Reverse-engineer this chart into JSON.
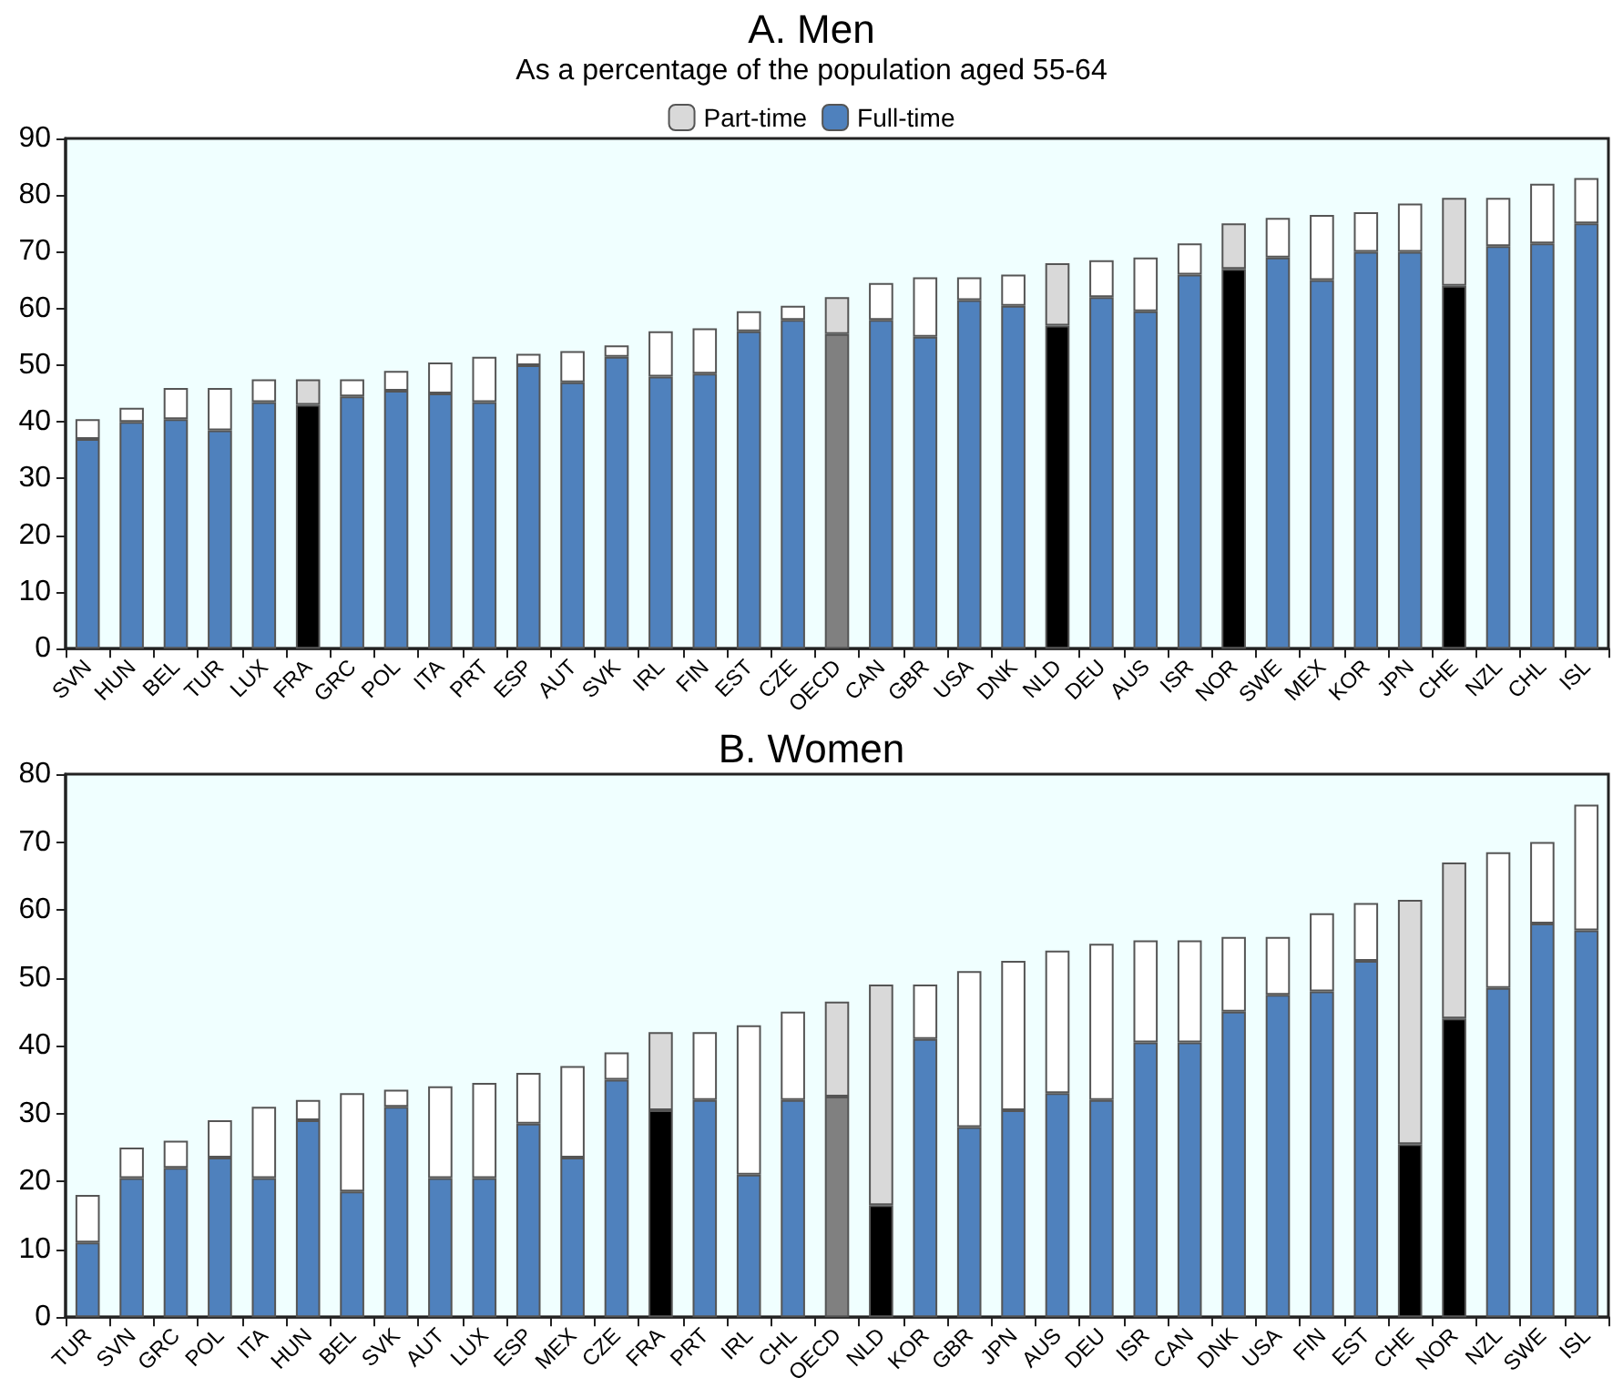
{
  "chart_data": [
    {
      "type": "bar",
      "title": "A. Men",
      "subtitle": "As a percentage of the population aged 55-64",
      "stacked": true,
      "legend": "top",
      "grid": false,
      "categories": [
        "SVN",
        "HUN",
        "BEL",
        "TUR",
        "LUX",
        "FRA",
        "GRC",
        "POL",
        "ITA",
        "PRT",
        "ESP",
        "AUT",
        "SVK",
        "IRL",
        "FIN",
        "EST",
        "CZE",
        "OECD",
        "CAN",
        "GBR",
        "USA",
        "DNK",
        "NLD",
        "DEU",
        "AUS",
        "ISR",
        "NOR",
        "SWE",
        "MEX",
        "KOR",
        "JPN",
        "CHE",
        "NZL",
        "CHL",
        "ISL"
      ],
      "ylim": [
        0,
        90
      ],
      "yticks": [
        0,
        10,
        20,
        30,
        40,
        50,
        60,
        70,
        80,
        90
      ],
      "series": [
        {
          "name": "Full-time",
          "color": "#4f81bd",
          "values": [
            37,
            40,
            40.5,
            38.5,
            43.5,
            43,
            44.5,
            45.5,
            45,
            43.5,
            50,
            47,
            51.5,
            48,
            48.5,
            56,
            58,
            55.5,
            58,
            55,
            61.5,
            60.5,
            57,
            62,
            59.5,
            66,
            67,
            69,
            65,
            70,
            70,
            64,
            71,
            71.5,
            75
          ],
          "colors": [
            "#4f81bd",
            "#4f81bd",
            "#4f81bd",
            "#4f81bd",
            "#4f81bd",
            "#000000",
            "#4f81bd",
            "#4f81bd",
            "#4f81bd",
            "#4f81bd",
            "#4f81bd",
            "#4f81bd",
            "#4f81bd",
            "#4f81bd",
            "#4f81bd",
            "#4f81bd",
            "#4f81bd",
            "#808080",
            "#4f81bd",
            "#4f81bd",
            "#4f81bd",
            "#4f81bd",
            "#000000",
            "#4f81bd",
            "#4f81bd",
            "#4f81bd",
            "#000000",
            "#4f81bd",
            "#4f81bd",
            "#4f81bd",
            "#4f81bd",
            "#000000",
            "#4f81bd",
            "#4f81bd",
            "#4f81bd"
          ]
        },
        {
          "name": "Part-time",
          "color": "#d9d9d9",
          "values": [
            3.5,
            2.5,
            5.5,
            7.5,
            4,
            4.5,
            3,
            3.5,
            5.5,
            8,
            2,
            5.5,
            2,
            8,
            8,
            3.5,
            2.5,
            6.5,
            6.5,
            10.5,
            4,
            5.5,
            11,
            6.5,
            9.5,
            5.5,
            8,
            7,
            11.5,
            7,
            8.5,
            15.5,
            8.5,
            10.5,
            8
          ],
          "colors": [
            "#ffffff",
            "#ffffff",
            "#ffffff",
            "#ffffff",
            "#ffffff",
            "#d9d9d9",
            "#ffffff",
            "#ffffff",
            "#ffffff",
            "#ffffff",
            "#ffffff",
            "#ffffff",
            "#ffffff",
            "#ffffff",
            "#ffffff",
            "#ffffff",
            "#ffffff",
            "#d9d9d9",
            "#ffffff",
            "#ffffff",
            "#ffffff",
            "#ffffff",
            "#d9d9d9",
            "#ffffff",
            "#ffffff",
            "#ffffff",
            "#d9d9d9",
            "#ffffff",
            "#ffffff",
            "#ffffff",
            "#ffffff",
            "#d9d9d9",
            "#ffffff",
            "#ffffff",
            "#ffffff"
          ]
        }
      ]
    },
    {
      "type": "bar",
      "title": "B. Women",
      "stacked": true,
      "grid": false,
      "categories": [
        "TUR",
        "SVN",
        "GRC",
        "POL",
        "ITA",
        "HUN",
        "BEL",
        "SVK",
        "AUT",
        "LUX",
        "ESP",
        "MEX",
        "CZE",
        "FRA",
        "PRT",
        "IRL",
        "CHL",
        "OECD",
        "NLD",
        "KOR",
        "GBR",
        "JPN",
        "AUS",
        "DEU",
        "ISR",
        "CAN",
        "DNK",
        "USA",
        "FIN",
        "EST",
        "CHE",
        "NOR",
        "NZL",
        "SWE",
        "ISL"
      ],
      "ylim": [
        0,
        80
      ],
      "yticks": [
        0,
        10,
        20,
        30,
        40,
        50,
        60,
        70,
        80
      ],
      "series": [
        {
          "color": "#4f81bd",
          "values": [
            11,
            20.5,
            22,
            23.5,
            20.5,
            29,
            18.5,
            31,
            20.5,
            20.5,
            28.5,
            23.5,
            35,
            30.5,
            32,
            21,
            32,
            32.5,
            16.5,
            41,
            28,
            30.5,
            33,
            32,
            40.5,
            40.5,
            45,
            47.5,
            48,
            52.5,
            25.5,
            44,
            48.5,
            58,
            57
          ],
          "colors": [
            "#4f81bd",
            "#4f81bd",
            "#4f81bd",
            "#4f81bd",
            "#4f81bd",
            "#4f81bd",
            "#4f81bd",
            "#4f81bd",
            "#4f81bd",
            "#4f81bd",
            "#4f81bd",
            "#4f81bd",
            "#4f81bd",
            "#000000",
            "#4f81bd",
            "#4f81bd",
            "#4f81bd",
            "#808080",
            "#000000",
            "#4f81bd",
            "#4f81bd",
            "#4f81bd",
            "#4f81bd",
            "#4f81bd",
            "#4f81bd",
            "#4f81bd",
            "#4f81bd",
            "#4f81bd",
            "#4f81bd",
            "#4f81bd",
            "#000000",
            "#000000",
            "#4f81bd",
            "#4f81bd",
            "#4f81bd"
          ]
        },
        {
          "color": "#d9d9d9",
          "values": [
            7,
            4.5,
            4,
            5.5,
            10.5,
            3,
            14.5,
            2.5,
            13.5,
            14,
            7.5,
            13.5,
            4,
            11.5,
            10,
            22,
            13,
            14,
            32.5,
            8,
            23,
            22,
            21,
            23,
            15,
            15,
            11,
            8.5,
            11.5,
            8.5,
            36,
            23,
            20,
            12,
            18.5
          ],
          "colors": [
            "#ffffff",
            "#ffffff",
            "#ffffff",
            "#ffffff",
            "#ffffff",
            "#ffffff",
            "#ffffff",
            "#ffffff",
            "#ffffff",
            "#ffffff",
            "#ffffff",
            "#ffffff",
            "#ffffff",
            "#d9d9d9",
            "#ffffff",
            "#ffffff",
            "#ffffff",
            "#d9d9d9",
            "#d9d9d9",
            "#ffffff",
            "#ffffff",
            "#ffffff",
            "#ffffff",
            "#ffffff",
            "#ffffff",
            "#ffffff",
            "#ffffff",
            "#ffffff",
            "#ffffff",
            "#ffffff",
            "#d9d9d9",
            "#d9d9d9",
            "#ffffff",
            "#ffffff",
            "#ffffff"
          ]
        }
      ]
    }
  ]
}
